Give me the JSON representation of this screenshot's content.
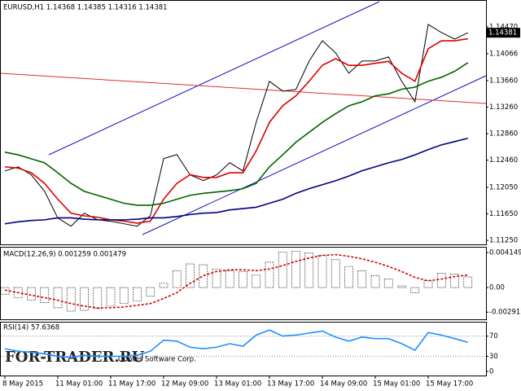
{
  "chart_data": [
    {
      "type": "line",
      "title": "EURUSD,H1  1.14368 1.14385 1.14316 1.14381",
      "categories": [
        "8 May 2015",
        null,
        null,
        null,
        "11 May 01:00",
        null,
        null,
        null,
        "11 May 17:00",
        null,
        null,
        null,
        "12 May 09:00",
        null,
        null,
        null,
        "13 May 01:00",
        null,
        null,
        null,
        "13 May 17:00",
        null,
        null,
        null,
        "14 May 09:00",
        null,
        null,
        null,
        "15 May 01:00",
        null,
        null,
        null,
        "15 May 17:00",
        null,
        null,
        null
      ],
      "series": [
        {
          "color": "#000000",
          "values": [
            1.12298,
            1.1236,
            1.12237,
            1.11991,
            1.11587,
            1.11464,
            1.1166,
            1.11562,
            1.11537,
            1.11501,
            1.11464,
            1.11623,
            1.12482,
            1.12544,
            1.12237,
            1.12151,
            1.12237,
            1.12421,
            1.12298,
            1.13034,
            1.13648,
            1.13501,
            1.13525,
            1.13955,
            1.14261,
            1.14077,
            1.13771,
            1.13955,
            1.13955,
            1.14016,
            1.13648,
            1.13341,
            1.14507,
            1.14384,
            1.14286,
            1.14381
          ],
          "value_labels": [
            null,
            null,
            null,
            null,
            null,
            null,
            null,
            null,
            null,
            null,
            null,
            null,
            null,
            null,
            null,
            null,
            null,
            null,
            null,
            null,
            null,
            null,
            null,
            null,
            null,
            null,
            null,
            null,
            null,
            null,
            null,
            null,
            null,
            null,
            null,
            "1.14381"
          ]
        },
        {
          "color": "#e00000",
          "values": [
            1.1236,
            1.1234,
            1.1227,
            1.1211,
            1.1187,
            1.1166,
            1.1162,
            1.116,
            1.1156,
            1.1154,
            1.1151,
            1.1154,
            1.1187,
            1.1211,
            1.1224,
            1.122,
            1.122,
            1.1227,
            1.1227,
            1.126,
            1.1303,
            1.1328,
            1.1343,
            1.1365,
            1.1389,
            1.1399,
            1.1389,
            1.1389,
            1.1392,
            1.1395,
            1.1377,
            1.1365,
            1.1414,
            1.1426,
            1.1426,
            1.1429
          ]
        },
        {
          "color": "#006400",
          "values": [
            1.1258,
            1.1254,
            1.1248,
            1.1242,
            1.1227,
            1.1211,
            1.1199,
            1.1193,
            1.1187,
            1.1181,
            1.1178,
            1.1178,
            1.1181,
            1.1187,
            1.1193,
            1.1196,
            1.1198,
            1.12,
            1.1203,
            1.1211,
            1.1236,
            1.1254,
            1.1273,
            1.1288,
            1.1303,
            1.1316,
            1.1328,
            1.1334,
            1.1343,
            1.1346,
            1.1353,
            1.1356,
            1.1365,
            1.1371,
            1.138,
            1.1393
          ]
        },
        {
          "color": "#000080",
          "values": [
            1.115,
            1.1153,
            1.1155,
            1.1156,
            1.1159,
            1.1159,
            1.1157,
            1.1156,
            1.1156,
            1.1156,
            1.1157,
            1.1159,
            1.1159,
            1.1161,
            1.1164,
            1.1166,
            1.1167,
            1.1171,
            1.1173,
            1.1175,
            1.1181,
            1.1187,
            1.1196,
            1.1203,
            1.1209,
            1.1215,
            1.1222,
            1.123,
            1.1236,
            1.1242,
            1.1247,
            1.1254,
            1.1262,
            1.1269,
            1.1274,
            1.1279
          ]
        }
      ],
      "ylim": [
        1.1119,
        1.1485
      ],
      "yticks": [
        {
          "value": 1.1447,
          "label": "1.14470"
        },
        1.14066,
        {
          "value": 1.1366,
          "label": "1.13660"
        },
        {
          "value": 1.1326,
          "label": "1.13260"
        },
        {
          "value": 1.1286,
          "label": "1.12860"
        },
        {
          "value": 1.1246,
          "label": "1.12460"
        },
        {
          "value": 1.1205,
          "label": "1.12050"
        },
        {
          "value": 1.1165,
          "label": "1.11650"
        },
        {
          "value": 1.1125,
          "label": "1.11250"
        }
      ],
      "annotations": [
        "FOR-TRADER.RU",
        "Quotes Software Corp."
      ]
    },
    {
      "type": "bar",
      "title": "MACD(12,26,9) 0.001259 0.001479",
      "series": [
        {
          "color": "#000000",
          "kind": "bar",
          "values": [
            -0.0008,
            -0.0012,
            -0.0015,
            -0.0018,
            -0.0024,
            -0.0028,
            -0.0027,
            -0.0025,
            -0.0022,
            -0.0019,
            -0.0016,
            -0.001,
            0.0005,
            0.002,
            0.0028,
            0.0027,
            0.0022,
            0.002,
            0.0019,
            0.0015,
            0.003,
            0.0042,
            0.0043,
            0.0041,
            0.0038,
            0.0033,
            0.0025,
            0.002,
            0.0014,
            0.001,
            0.0002,
            -0.0006,
            0.0008,
            0.0017,
            0.0016,
            0.001259
          ]
        },
        {
          "color": "#d00000",
          "kind": "line",
          "dash": true,
          "values": [
            -0.0003,
            -0.0006,
            -0.0009,
            -0.0012,
            -0.0015,
            -0.0019,
            -0.0022,
            -0.0024,
            -0.0024,
            -0.0023,
            -0.0021,
            -0.0019,
            -0.0013,
            -0.0006,
            0.0005,
            0.0014,
            0.0019,
            0.0021,
            0.0021,
            0.002,
            0.0022,
            0.0026,
            0.0031,
            0.0035,
            0.0038,
            0.0039,
            0.0037,
            0.0034,
            0.003,
            0.0025,
            0.0019,
            0.0012,
            0.0008,
            0.001,
            0.0013,
            0.001479
          ]
        }
      ],
      "ylim": [
        -0.00357,
        0.00463
      ],
      "yticks": [
        0.004149,
        {
          "value": 0,
          "label": "0.00"
        },
        -0.002912
      ]
    },
    {
      "type": "line",
      "title": "RSI(14) 57.6368",
      "series": [
        {
          "color": "#1e90ff",
          "values": [
            45,
            40,
            38,
            35,
            30,
            28,
            32,
            30,
            30,
            30,
            32,
            40,
            62,
            60,
            48,
            45,
            48,
            55,
            50,
            72,
            82,
            70,
            72,
            76,
            80,
            68,
            60,
            68,
            65,
            65,
            55,
            42,
            77,
            72,
            65,
            57.6368
          ]
        }
      ],
      "ylim": [
        0,
        100
      ],
      "yticks": [
        70,
        30,
        0
      ],
      "levels": [
        70,
        30
      ]
    }
  ]
}
